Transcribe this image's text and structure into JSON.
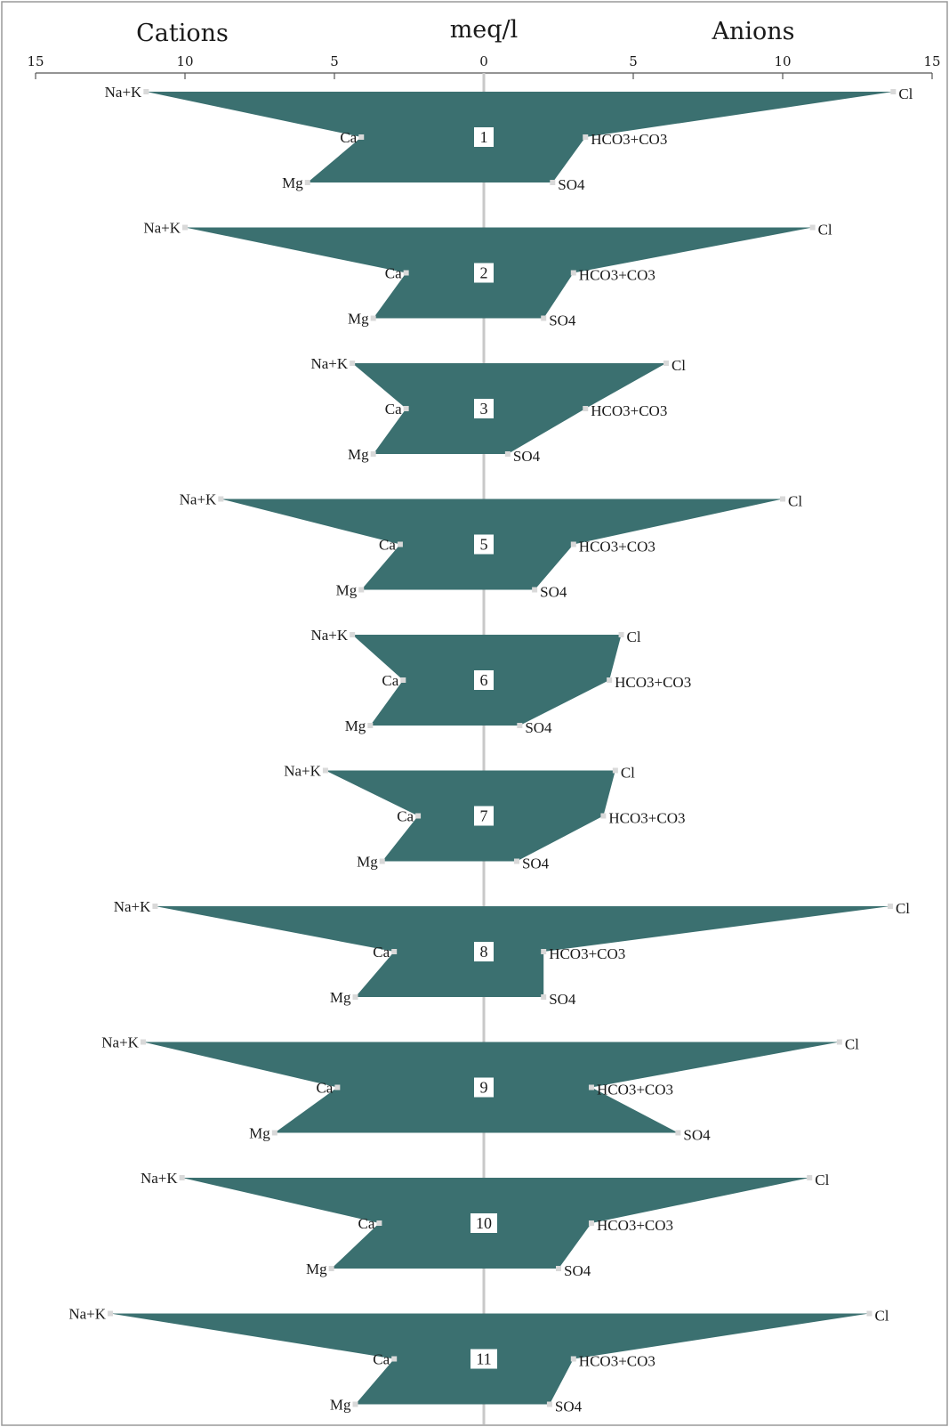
{
  "header": {
    "cations_label": "Cations",
    "anions_label": "Anions",
    "unit_label": "meq/l"
  },
  "colors": {
    "fill": "#3b7070",
    "center_line": "#c8c8c8",
    "frame": "#9a9a9a"
  },
  "chart_data": {
    "type": "stiff",
    "title": "",
    "xlabel": "meq/l",
    "xlim": [
      -15,
      15
    ],
    "x_ticks": [
      -15,
      -10,
      -5,
      0,
      5,
      10,
      15
    ],
    "x_tick_labels": [
      "15",
      "10",
      "5",
      "0",
      "5",
      "10",
      "15"
    ],
    "cation_labels": [
      "Na+K",
      "Ca",
      "Mg"
    ],
    "anion_labels": [
      "Cl",
      "HCO3+CO3",
      "SO4"
    ],
    "samples": [
      {
        "id": "1",
        "cations": [
          11.3,
          4.1,
          5.9
        ],
        "anions": [
          13.7,
          3.4,
          2.3
        ]
      },
      {
        "id": "2",
        "cations": [
          10.0,
          2.6,
          3.7
        ],
        "anions": [
          11.0,
          3.0,
          2.0
        ]
      },
      {
        "id": "3",
        "cations": [
          4.4,
          2.6,
          3.7
        ],
        "anions": [
          6.1,
          3.4,
          0.8
        ]
      },
      {
        "id": "5",
        "cations": [
          8.8,
          2.8,
          4.1
        ],
        "anions": [
          10.0,
          3.0,
          1.7
        ]
      },
      {
        "id": "6",
        "cations": [
          4.4,
          2.7,
          3.8
        ],
        "anions": [
          4.6,
          4.2,
          1.2
        ]
      },
      {
        "id": "7",
        "cations": [
          5.3,
          2.2,
          3.4
        ],
        "anions": [
          4.4,
          4.0,
          1.1
        ]
      },
      {
        "id": "8",
        "cations": [
          11.0,
          3.0,
          4.3
        ],
        "anions": [
          13.6,
          2.0,
          2.0
        ]
      },
      {
        "id": "9",
        "cations": [
          11.4,
          4.9,
          7.0
        ],
        "anions": [
          11.9,
          3.6,
          6.5
        ]
      },
      {
        "id": "10",
        "cations": [
          10.1,
          3.5,
          5.1
        ],
        "anions": [
          10.9,
          3.6,
          2.5
        ]
      },
      {
        "id": "11",
        "cations": [
          12.5,
          3.0,
          4.3
        ],
        "anions": [
          12.9,
          3.0,
          2.2
        ]
      }
    ]
  }
}
